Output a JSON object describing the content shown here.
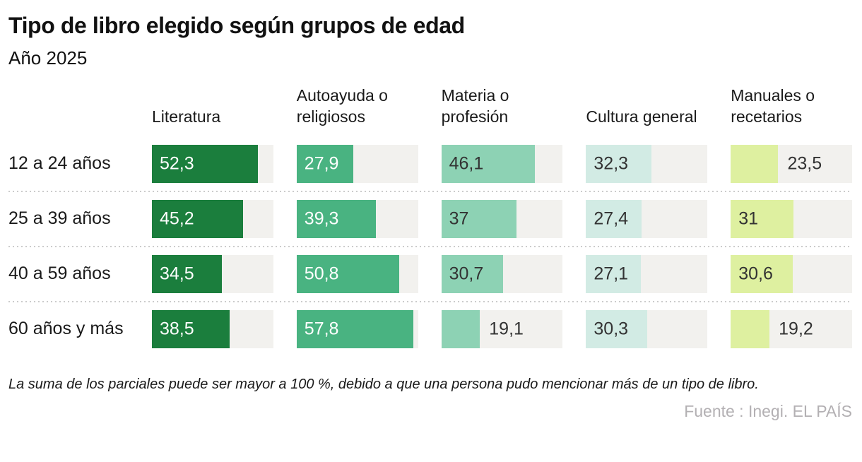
{
  "chart_data": {
    "type": "bar",
    "orientation": "horizontal",
    "title": "Tipo de libro elegido según grupos de edad",
    "subtitle": "Año 2025",
    "categories": [
      "12 a 24 años",
      "25 a 39 años",
      "40 a 59 años",
      "60 años y más"
    ],
    "series": [
      {
        "name": "Literatura",
        "color": "#1b7e3d",
        "label_color": "#ffffff",
        "values": [
          52.3,
          45.2,
          34.5,
          38.5
        ]
      },
      {
        "name": "Autoayuda o religiosos",
        "color": "#49b381",
        "label_color": "#ffffff",
        "values": [
          27.9,
          39.3,
          50.8,
          57.8
        ]
      },
      {
        "name": "Materia o profesión",
        "color": "#8dd2b4",
        "label_color": "#333333",
        "values": [
          46.1,
          37,
          30.7,
          19.1
        ]
      },
      {
        "name": "Cultura general",
        "color": "#d2ebe4",
        "label_color": "#333333",
        "values": [
          32.3,
          27.4,
          27.1,
          30.3
        ]
      },
      {
        "name": "Manuales o recetarios",
        "color": "#def0a0",
        "label_color": "#333333",
        "values": [
          23.5,
          31,
          30.6,
          19.2
        ]
      }
    ],
    "display": [
      [
        "52,3",
        "27,9",
        "46,1",
        "32,3",
        "23,5"
      ],
      [
        "45,2",
        "39,3",
        "37",
        "27,4",
        "31"
      ],
      [
        "34,5",
        "50,8",
        "30,7",
        "27,1",
        "30,6"
      ],
      [
        "38,5",
        "57,8",
        "19,1",
        "30,3",
        "19,2"
      ]
    ],
    "xmax": 60,
    "track_color": "#f2f1ee",
    "outside_label_color": "#333333",
    "grid": "off",
    "legend_position": "top-as-column-headers"
  },
  "footnote": "La suma de los parciales puede ser mayor a 100 %, debido a que una persona pudo mencionar más de un tipo de libro.",
  "source": "Fuente : Inegi. EL PAÍS"
}
